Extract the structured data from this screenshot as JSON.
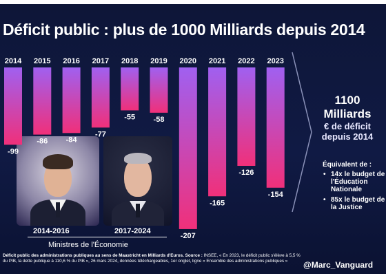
{
  "title": "Déficit public : plus de 1000 Milliards depuis 2014",
  "chart_data": {
    "type": "bar",
    "categories": [
      "2014",
      "2015",
      "2016",
      "2017",
      "2018",
      "2019",
      "2020",
      "2021",
      "2022",
      "2023"
    ],
    "values": [
      -99,
      -86,
      -84,
      -77,
      -55,
      -58,
      -207,
      -165,
      -126,
      -154
    ],
    "value_labels": [
      "-99",
      "-86",
      "-84",
      "-77",
      "-55",
      "-58",
      "-207",
      "-165",
      "-126",
      "-154"
    ],
    "ylim": [
      -215,
      0
    ],
    "orientation": "downward from top",
    "unit": "Milliards d'Euros",
    "grid": false
  },
  "colors": {
    "background": "#0f1840",
    "bar_top": "#a060f0",
    "bar_bottom": "#f0307a",
    "text": "#ffffff"
  },
  "ministers": {
    "label": "Ministres de l'Économie",
    "period_1": "2014-2016",
    "period_2": "2017-2024"
  },
  "summary": {
    "amount": "1100",
    "unit": "Milliards",
    "line3": "€ de déficit",
    "line4": "depuis 2014",
    "equiv_label": "Équivalent de :",
    "equiv": [
      "14x le budget de l'Éducation Nationale",
      "85x le budget de la Justice"
    ]
  },
  "source": {
    "bold": "Déficit public des administrations publiques au sens de Maastricht en Milliards d'Euros. Source :",
    "text": " INSEE, « En 2023, le déficit public s'élève à 5,5 % du PIB, la dette publique à 110,6 % du PIB », 26 mars 2024, données téléchargeables, 1er onglet, ligne « Ensemble des administrations publiques »"
  },
  "handle": "@Marc_Vanguard"
}
